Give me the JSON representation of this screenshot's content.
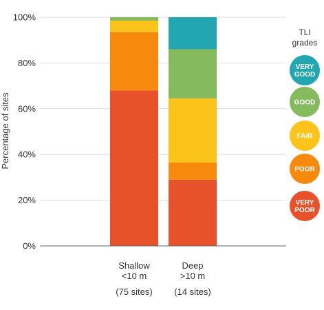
{
  "chart_data": {
    "type": "bar",
    "stacked": true,
    "ylabel": "Percentage of sites",
    "ylim": [
      0,
      100
    ],
    "yticks": [
      {
        "value": 0,
        "label": "0%"
      },
      {
        "value": 20,
        "label": "20%"
      },
      {
        "value": 40,
        "label": "40%"
      },
      {
        "value": 60,
        "label": "60%"
      },
      {
        "value": 80,
        "label": "80%"
      },
      {
        "value": 100,
        "label": "100%"
      }
    ],
    "grid": true,
    "categories": [
      {
        "lines": [
          "Shallow",
          "<10 m"
        ],
        "sites": "(75 sites)"
      },
      {
        "lines": [
          "Deep",
          ">10 m"
        ],
        "sites": "(14 sites)"
      }
    ],
    "legend": {
      "title_lines": [
        "TLI",
        "grades"
      ],
      "placement": "right"
    },
    "series": [
      {
        "name_lines": [
          "VERY",
          "POOR"
        ],
        "color": "#e8522a",
        "values": [
          68,
          29
        ]
      },
      {
        "name_lines": [
          "POOR"
        ],
        "color": "#f7890c",
        "values": [
          25.5,
          7.5
        ]
      },
      {
        "name_lines": [
          "FAIR"
        ],
        "color": "#fcc41a",
        "values": [
          5,
          28
        ]
      },
      {
        "name_lines": [
          "GOOD"
        ],
        "color": "#85bb5c",
        "values": [
          1.5,
          21.5
        ]
      },
      {
        "name_lines": [
          "VERY",
          "GOOD"
        ],
        "color": "#22a6b0",
        "values": [
          0,
          14
        ]
      }
    ]
  }
}
